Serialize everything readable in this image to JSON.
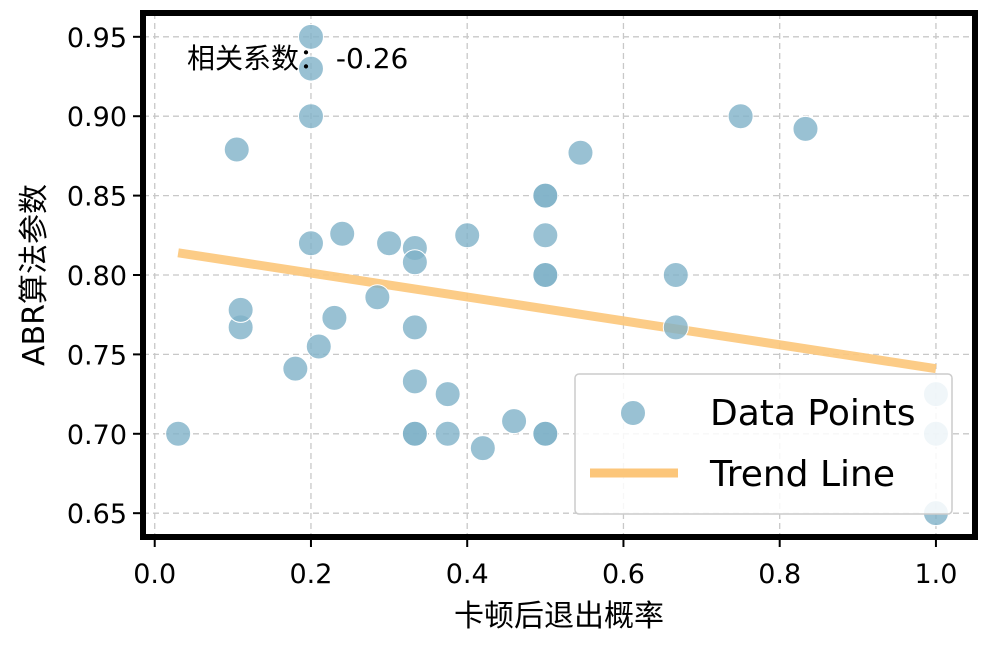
{
  "chart_data": {
    "type": "scatter",
    "xlabel": "卡顿后退出概率",
    "ylabel": "ABR算法参数",
    "xlim": [
      -0.015,
      1.05
    ],
    "ylim": [
      0.635,
      0.965
    ],
    "xticks": [
      0.0,
      0.2,
      0.4,
      0.6,
      0.8,
      1.0
    ],
    "xtick_labels": [
      "0.0",
      "0.2",
      "0.4",
      "0.6",
      "0.8",
      "1.0"
    ],
    "yticks": [
      0.65,
      0.7,
      0.75,
      0.8,
      0.85,
      0.9,
      0.95
    ],
    "ytick_labels": [
      "0.65",
      "0.70",
      "0.75",
      "0.80",
      "0.85",
      "0.90",
      "0.95"
    ],
    "grid": true,
    "annotation": "相关系数： -0.26",
    "legend_position": "lower-right",
    "colors": {
      "points": "#7fb2c8",
      "trend": "#fcc67a",
      "frame": "#000000",
      "grid": "#c8c8c8"
    },
    "series": [
      {
        "name": "Data Points",
        "kind": "scatter",
        "points": [
          [
            0.03,
            0.7
          ],
          [
            0.105,
            0.879
          ],
          [
            0.11,
            0.767
          ],
          [
            0.11,
            0.778
          ],
          [
            0.18,
            0.741
          ],
          [
            0.2,
            0.95
          ],
          [
            0.2,
            0.93
          ],
          [
            0.2,
            0.9
          ],
          [
            0.2,
            0.82
          ],
          [
            0.21,
            0.755
          ],
          [
            0.23,
            0.773
          ],
          [
            0.24,
            0.826
          ],
          [
            0.285,
            0.786
          ],
          [
            0.3,
            0.82
          ],
          [
            0.333,
            0.817
          ],
          [
            0.333,
            0.808
          ],
          [
            0.333,
            0.767
          ],
          [
            0.333,
            0.733
          ],
          [
            0.333,
            0.7
          ],
          [
            0.333,
            0.7
          ],
          [
            0.375,
            0.725
          ],
          [
            0.375,
            0.7
          ],
          [
            0.4,
            0.825
          ],
          [
            0.42,
            0.691
          ],
          [
            0.46,
            0.708
          ],
          [
            0.5,
            0.85
          ],
          [
            0.5,
            0.85
          ],
          [
            0.5,
            0.825
          ],
          [
            0.5,
            0.8
          ],
          [
            0.5,
            0.8
          ],
          [
            0.5,
            0.7
          ],
          [
            0.5,
            0.7
          ],
          [
            0.545,
            0.877
          ],
          [
            0.667,
            0.8
          ],
          [
            0.667,
            0.767
          ],
          [
            0.75,
            0.9
          ],
          [
            0.833,
            0.892
          ],
          [
            1.0,
            0.725
          ],
          [
            1.0,
            0.7
          ],
          [
            1.0,
            0.65
          ]
        ]
      },
      {
        "name": "Trend Line",
        "kind": "line",
        "points": [
          [
            0.03,
            0.814
          ],
          [
            1.0,
            0.741
          ]
        ]
      }
    ]
  }
}
